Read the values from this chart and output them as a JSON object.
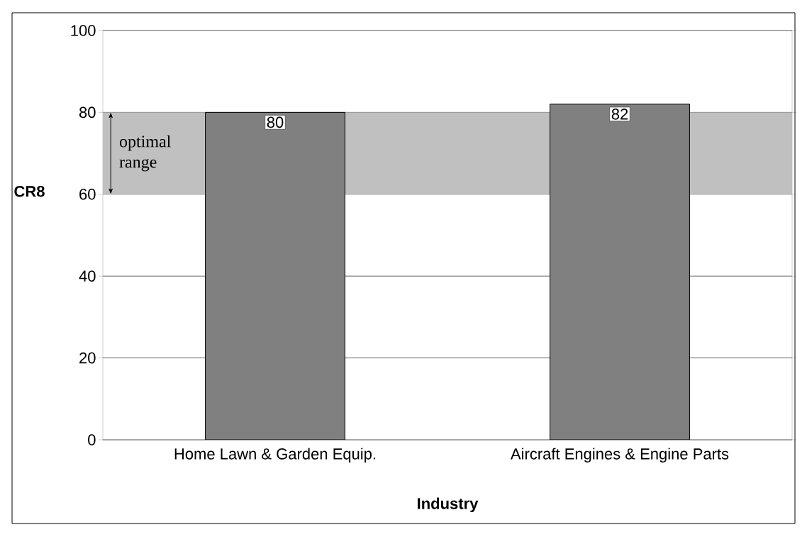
{
  "chart_data": {
    "type": "bar",
    "xlabel": "Industry",
    "ylabel": "CR8",
    "categories": [
      "Home Lawn & Garden Equip.",
      "Aircraft Engines & Engine Parts"
    ],
    "values": [
      80,
      82
    ],
    "color": "#808080",
    "data_labels": true,
    "ylim": [
      0,
      100
    ],
    "yticks": [
      0,
      20,
      40,
      60,
      80,
      100
    ],
    "grid": "y",
    "bands": [
      {
        "axis": "y",
        "from": 60,
        "to": 80,
        "label": "optimal range",
        "color": "#c0c0c0"
      }
    ]
  }
}
